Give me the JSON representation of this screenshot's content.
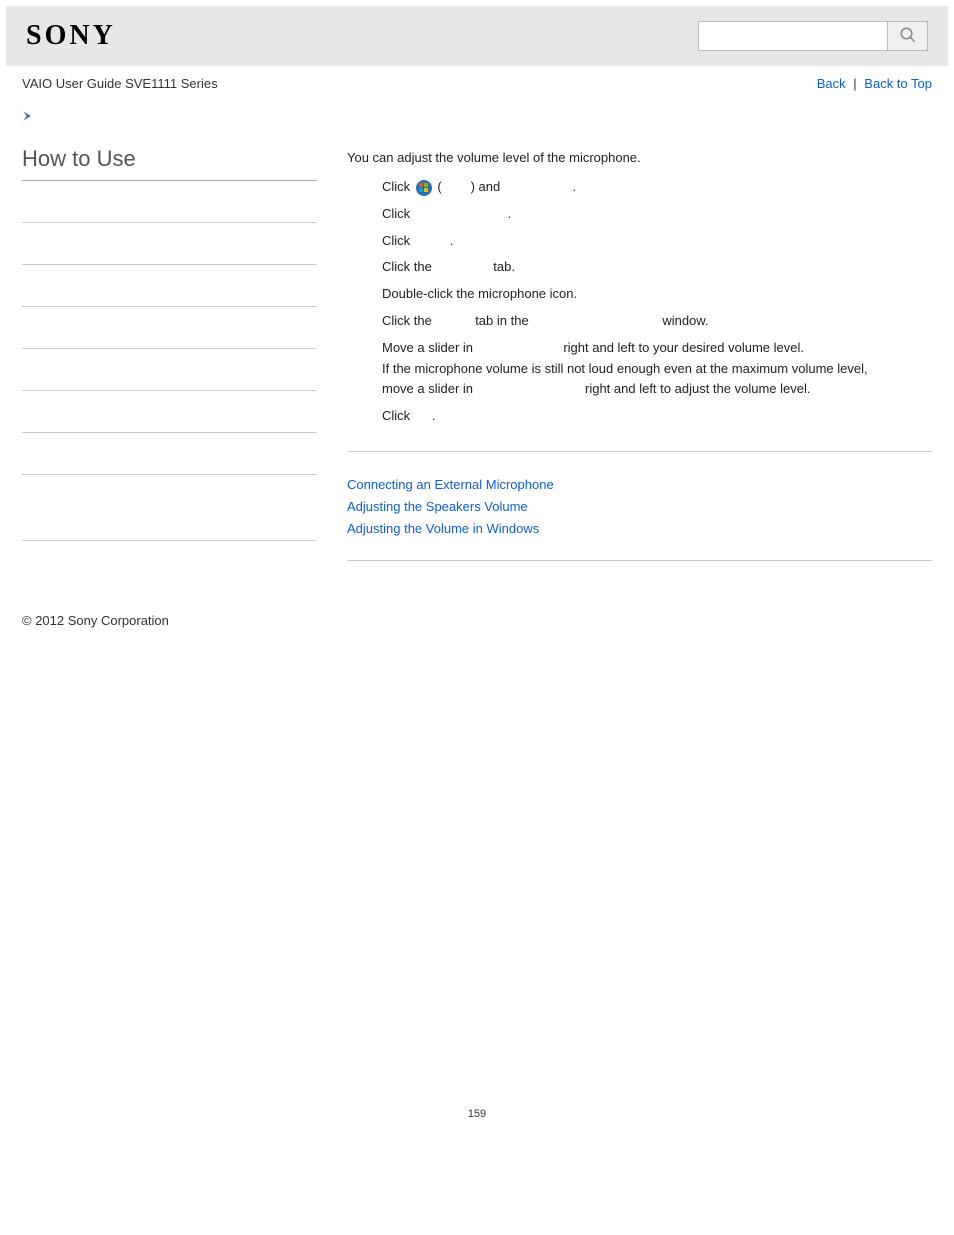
{
  "header": {
    "logo_text": "SONY",
    "search_value": "",
    "search_placeholder": ""
  },
  "subheader": {
    "guide_title": "VAIO User Guide SVE1111 Series",
    "back_label": "Back",
    "back_to_top_label": "Back to Top",
    "separator": "|"
  },
  "sidebar": {
    "title": "How to Use",
    "item_count": 8
  },
  "content": {
    "intro": "You can adjust the volume level of the microphone.",
    "steps": [
      {
        "pre": "Click ",
        "win_icon": true,
        "mid": " (",
        "gap1": "        ",
        "t2": ") and ",
        "gap2": "                   ",
        "t3": "."
      },
      {
        "pre": "Click ",
        "gap1": "                          ",
        "t2": "."
      },
      {
        "pre": "Click ",
        "gap1": "          ",
        "t2": "."
      },
      {
        "pre": "Click the ",
        "gap1": "               ",
        "t2": " tab."
      },
      {
        "pre": "Double-click the microphone icon."
      },
      {
        "pre": "Click the ",
        "gap1": "          ",
        "t2": " tab in the ",
        "gap2": "                                   ",
        "t3": " window."
      },
      {
        "pre": "Move a slider in ",
        "gap1": "                       ",
        "t2": " right and left to your desired volume level.",
        "line2a": "If the microphone volume is still not loud enough even at the maximum volume level,",
        "line2b": "move a slider in ",
        "gap3": "                             ",
        "t4": " right and left to adjust the volume level."
      },
      {
        "pre": "Click ",
        "gap1": "     ",
        "t2": "."
      }
    ],
    "related_links": [
      "Connecting an External Microphone",
      "Adjusting the Speakers Volume",
      "Adjusting the Volume in Windows"
    ]
  },
  "footer": {
    "copyright": "© 2012 Sony Corporation",
    "page_number": "159"
  },
  "colors": {
    "link": "#0c5ed8",
    "header_bg": "#e7e7e7",
    "arrow_fill": "#4a7a8a"
  }
}
